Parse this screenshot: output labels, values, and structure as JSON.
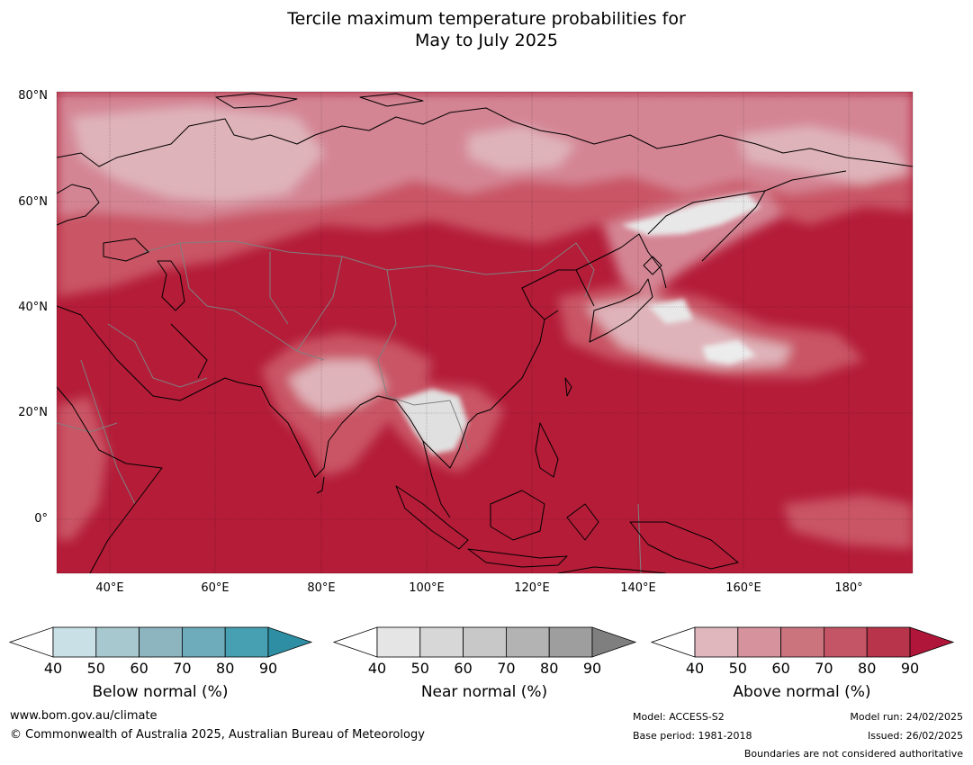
{
  "title": {
    "line1": "Tercile maximum temperature probabilities for",
    "line2": "May to July 2025"
  },
  "map": {
    "lat_labels": [
      "80°N",
      "60°N",
      "40°N",
      "20°N",
      "0°"
    ],
    "lon_labels": [
      "40°E",
      "60°E",
      "80°E",
      "100°E",
      "120°E",
      "140°E",
      "160°E",
      "180°"
    ],
    "colors": {
      "above_90": "#b41c38",
      "above_80": "#bf3549",
      "above_70": "#c95565",
      "above_60": "#d48594",
      "above_50": "#dfb3ba",
      "near_40": "#e8e8e8",
      "near_50": "#d9d9d9",
      "coast": "#000000",
      "border": "#808080"
    }
  },
  "colorbars": [
    {
      "title": "Below normal (%)",
      "ticks": [
        "40",
        "50",
        "60",
        "70",
        "80",
        "90"
      ],
      "colors": [
        "#ffffff",
        "#c8e0e6",
        "#a8c8cf",
        "#8cb5c0",
        "#6eacbb",
        "#46a0b2",
        "#2e8fa4"
      ]
    },
    {
      "title": "Near normal (%)",
      "ticks": [
        "40",
        "50",
        "60",
        "70",
        "80",
        "90"
      ],
      "colors": [
        "#ffffff",
        "#e5e5e5",
        "#d7d7d7",
        "#c8c8c8",
        "#b3b3b3",
        "#9e9e9e",
        "#7f7f7f"
      ]
    },
    {
      "title": "Above normal (%)",
      "ticks": [
        "40",
        "50",
        "60",
        "70",
        "80",
        "90"
      ],
      "colors": [
        "#ffffff",
        "#dfb7bd",
        "#d6939d",
        "#cc747e",
        "#c45566",
        "#b8344a",
        "#b0163a"
      ]
    }
  ],
  "footer": {
    "website": "www.bom.gov.au/climate",
    "copyright": "© Commonwealth of Australia 2025, Australian Bureau of Meteorology",
    "model": "Model: ACCESS-S2",
    "base_period": "Base period: 1981-2018",
    "model_run": "Model run: 24/02/2025",
    "issued": "Issued: 26/02/2025",
    "boundaries": "Boundaries are not considered authoritative"
  }
}
